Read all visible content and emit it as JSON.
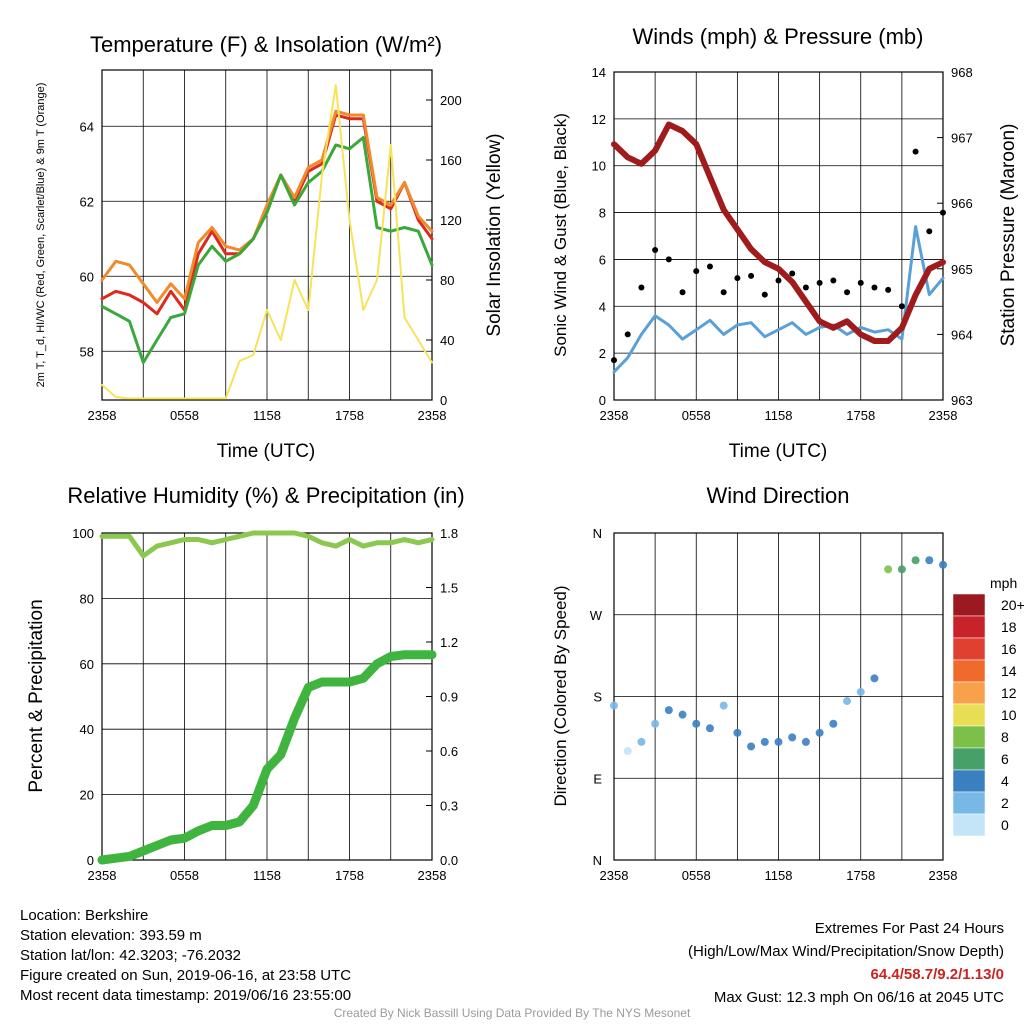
{
  "charts": [
    {
      "id": "temp",
      "title": "Temperature (F) & Insolation (W/m²)",
      "xlabel": "Time (UTC)",
      "ylabel": "2m T, T_d, HI/WC (Red, Green, Scarlet/Blue) & 9m T (Orange)",
      "ylabel2": "Solar Insolation (Yellow)"
    },
    {
      "id": "wind",
      "title": "Winds (mph) & Pressure (mb)",
      "xlabel": "Time (UTC)",
      "ylabel": "Sonic Wind & Gust (Blue, Black)",
      "ylabel2": "Station Pressure (Maroon)"
    },
    {
      "id": "rh",
      "title": "Relative Humidity (%) & Precipitation (in)",
      "xlabel": "",
      "ylabel": "Percent & Precipitation",
      "ylabel2": ""
    },
    {
      "id": "dir",
      "title": "Wind Direction",
      "xlabel": "",
      "ylabel": "Direction (Colored By Speed)",
      "ylabel2": ""
    }
  ],
  "chart_data": [
    {
      "type": "line",
      "title": "Temperature (F) & Insolation (W/m²)",
      "x_ticks": [
        "2358",
        "0558",
        "1158",
        "1758",
        "2358"
      ],
      "y_ticks": [
        58,
        60,
        62,
        64
      ],
      "y2_ticks": [
        0,
        40,
        80,
        120,
        160,
        200
      ],
      "ylim": [
        56.7,
        65.5
      ],
      "y2lim": [
        0,
        220
      ],
      "x": [
        0,
        1,
        2,
        3,
        4,
        5,
        6,
        7,
        8,
        9,
        10,
        11,
        12,
        13,
        14,
        15,
        16,
        17,
        18,
        19,
        20,
        21,
        22,
        23,
        24
      ],
      "series": [
        {
          "name": "2m T (Red)",
          "color": "#dd2a1d",
          "axis": "left",
          "values": [
            59.4,
            59.6,
            59.5,
            59.3,
            59.0,
            59.6,
            59.1,
            60.6,
            61.2,
            60.6,
            60.6,
            61.0,
            61.8,
            62.7,
            62.0,
            62.8,
            63.0,
            64.3,
            64.2,
            64.2,
            62.0,
            61.8,
            62.5,
            61.5,
            61.0
          ]
        },
        {
          "name": "9m T (Orange)",
          "color": "#f08a2c",
          "axis": "left",
          "values": [
            59.9,
            60.4,
            60.3,
            59.8,
            59.3,
            59.8,
            59.4,
            60.9,
            61.3,
            60.8,
            60.7,
            61.0,
            61.9,
            62.7,
            62.1,
            62.9,
            63.1,
            64.4,
            64.3,
            64.3,
            62.1,
            61.9,
            62.5,
            61.6,
            61.2
          ]
        },
        {
          "name": "T_d (Green)",
          "color": "#3aa83a",
          "axis": "left",
          "values": [
            59.2,
            59.0,
            58.8,
            57.7,
            58.3,
            58.9,
            59.0,
            60.3,
            60.8,
            60.4,
            60.6,
            61.0,
            61.7,
            62.7,
            61.9,
            62.5,
            62.8,
            63.5,
            63.4,
            63.7,
            61.3,
            61.2,
            61.3,
            61.2,
            60.3
          ]
        },
        {
          "name": "Solar Insolation (Yellow)",
          "color": "#f7e35a",
          "axis": "right",
          "values": [
            10,
            2,
            1,
            1,
            1,
            1,
            1,
            1,
            1,
            1,
            26,
            30,
            60,
            40,
            80,
            60,
            150,
            210,
            120,
            60,
            80,
            170,
            55,
            40,
            25
          ]
        }
      ]
    },
    {
      "type": "line",
      "title": "Winds (mph) & Pressure (mb)",
      "x_ticks": [
        "2358",
        "0558",
        "1158",
        "1758",
        "2358"
      ],
      "y_ticks": [
        0,
        2,
        4,
        6,
        8,
        10,
        12,
        14
      ],
      "y2_ticks": [
        963,
        964,
        965,
        966,
        967,
        968
      ],
      "ylim": [
        0,
        14
      ],
      "y2lim": [
        963,
        968
      ],
      "x": [
        0,
        1,
        2,
        3,
        4,
        5,
        6,
        7,
        8,
        9,
        10,
        11,
        12,
        13,
        14,
        15,
        16,
        17,
        18,
        19,
        20,
        21,
        22,
        23,
        24
      ],
      "series": [
        {
          "name": "Sonic Wind (Blue)",
          "color": "#5aa0d8",
          "axis": "left",
          "values": [
            1.2,
            1.8,
            2.8,
            3.6,
            3.2,
            2.6,
            3.0,
            3.4,
            2.8,
            3.2,
            3.3,
            2.7,
            3.0,
            3.3,
            2.8,
            3.1,
            3.2,
            2.8,
            3.1,
            2.9,
            3.0,
            2.6,
            7.4,
            4.5,
            5.2
          ]
        },
        {
          "name": "Gust (Black)",
          "color": "#000000",
          "axis": "left",
          "values": [
            1.7,
            2.8,
            4.8,
            6.4,
            6.0,
            4.6,
            5.5,
            5.7,
            4.6,
            5.2,
            5.3,
            4.5,
            5.1,
            5.4,
            4.8,
            5.0,
            5.1,
            4.6,
            5.0,
            4.8,
            4.7,
            4.0,
            10.6,
            7.2,
            8.0
          ]
        },
        {
          "name": "Station Pressure (Maroon)",
          "color": "#a01c1c",
          "axis": "right",
          "values": [
            966.9,
            966.7,
            966.6,
            966.8,
            967.2,
            967.1,
            966.9,
            966.4,
            965.9,
            965.6,
            965.3,
            965.1,
            965.0,
            964.8,
            964.5,
            964.2,
            964.1,
            964.2,
            964.0,
            963.9,
            963.9,
            964.1,
            964.6,
            965.0,
            965.1
          ]
        }
      ]
    },
    {
      "type": "line",
      "title": "Relative Humidity (%) & Precipitation (in)",
      "x_ticks": [
        "2358",
        "0558",
        "1158",
        "1758",
        "2358"
      ],
      "y_ticks": [
        0,
        20,
        40,
        60,
        80,
        100
      ],
      "y2_ticks": [
        "0.0",
        "0.3",
        "0.6",
        "0.9",
        "1.2",
        "1.5",
        "1.8"
      ],
      "ylim": [
        0,
        100
      ],
      "y2lim": [
        0,
        1.8
      ],
      "x": [
        0,
        1,
        2,
        3,
        4,
        5,
        6,
        7,
        8,
        9,
        10,
        11,
        12,
        13,
        14,
        15,
        16,
        17,
        18,
        19,
        20,
        21,
        22,
        23,
        24
      ],
      "series": [
        {
          "name": "Relative Humidity",
          "color": "#8cc850",
          "axis": "left",
          "values": [
            99,
            99,
            99,
            93,
            96,
            97,
            98,
            98,
            97,
            98,
            99,
            100,
            100,
            100,
            100,
            99,
            97,
            96,
            98,
            96,
            97,
            97,
            98,
            97,
            98
          ]
        },
        {
          "name": "Precipitation",
          "color": "#3fb43f",
          "axis": "right",
          "values": [
            0.0,
            0.01,
            0.02,
            0.05,
            0.08,
            0.11,
            0.12,
            0.16,
            0.19,
            0.19,
            0.21,
            0.3,
            0.5,
            0.58,
            0.78,
            0.95,
            0.98,
            0.98,
            0.98,
            1.0,
            1.08,
            1.12,
            1.13,
            1.13,
            1.13
          ]
        }
      ]
    },
    {
      "type": "scatter",
      "title": "Wind Direction",
      "x_ticks": [
        "2358",
        "0558",
        "1158",
        "1758",
        "2358"
      ],
      "y_ticks": [
        "N",
        "E",
        "S",
        "W",
        "N"
      ],
      "ylim": [
        0,
        360
      ],
      "x": [
        0,
        1,
        2,
        3,
        4,
        5,
        6,
        7,
        8,
        9,
        10,
        11,
        12,
        13,
        14,
        15,
        16,
        17,
        18,
        19,
        20,
        21,
        22,
        23,
        24
      ],
      "series": [
        {
          "name": "direction",
          "values": [
            170,
            120,
            130,
            150,
            165,
            160,
            150,
            145,
            170,
            140,
            125,
            130,
            130,
            135,
            130,
            140,
            150,
            175,
            185,
            200,
            320,
            320,
            330,
            330,
            325
          ],
          "speeds": [
            1,
            0,
            1,
            2,
            3,
            3,
            3,
            4,
            2,
            4,
            4,
            3,
            4,
            4,
            3,
            3,
            3,
            2,
            2,
            3,
            7,
            6,
            5,
            4,
            4
          ]
        }
      ],
      "legend": {
        "title": "mph",
        "labels": [
          "20+",
          "18",
          "16",
          "14",
          "12",
          "10",
          "8",
          "6",
          "4",
          "2",
          "0"
        ],
        "colors": [
          "#9c1a1f",
          "#c8222a",
          "#e04030",
          "#f06a2c",
          "#f8a04a",
          "#e8de54",
          "#7cc04a",
          "#46a068",
          "#3a80c0",
          "#78b8e4",
          "#c4e4f8"
        ]
      }
    }
  ],
  "footer": {
    "location": "Location: Berkshire",
    "elevation": "Station elevation: 393.59 m",
    "latlon": "Station lat/lon: 42.3203; -76.2032",
    "created": "Figure created on Sun, 2019-06-16, at 23:58 UTC",
    "recent": "Most recent data timestamp: 2019/06/16 23:55:00",
    "extremes_title": "Extremes For Past 24 Hours",
    "extremes_sub": "(High/Low/Max Wind/Precipitation/Snow Depth)",
    "extremes_values": "64.4/58.7/9.2/1.13/0",
    "max_gust": "Max Gust: 12.3 mph On 06/16 at 2045 UTC",
    "credit": "Created By Nick Bassill Using Data Provided By The NYS Mesonet"
  }
}
